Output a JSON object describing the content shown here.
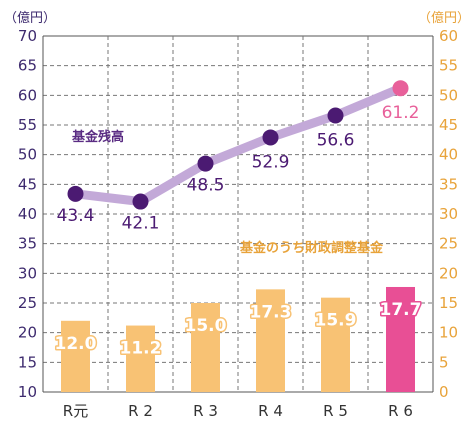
{
  "chart_data": {
    "type": "bar+line",
    "categories": [
      "R元",
      "R 2",
      "R 3",
      "R 4",
      "R 5",
      "R 6"
    ],
    "y_left": {
      "unit": "（億円）",
      "min": 10,
      "max": 70,
      "step": 5
    },
    "y_right": {
      "unit": "（億円）",
      "min": 0,
      "max": 60,
      "step": 5
    },
    "grid": true,
    "series": [
      {
        "name": "基金残高",
        "kind": "line",
        "axis": "left",
        "values": [
          43.4,
          42.1,
          48.5,
          52.9,
          56.6,
          61.2
        ],
        "labels": [
          "43.4",
          "42.1",
          "48.5",
          "52.9",
          "56.6",
          "61.2"
        ],
        "line_color": "#c3a9d8",
        "marker_color": "#4b1a72",
        "last_marker_color": "#e8609a",
        "label_color": "#4b1a72",
        "last_label_color": "#e8609a"
      },
      {
        "name": "基金のうち財政調整基金",
        "kind": "bar",
        "axis": "right",
        "values": [
          12.0,
          11.2,
          15.0,
          17.3,
          15.9,
          17.7
        ],
        "labels": [
          "12.0",
          "11.2",
          "15.0",
          "17.3",
          "15.9",
          "17.7"
        ],
        "color": "#f8c274",
        "last_color": "#e84f95"
      }
    ]
  }
}
